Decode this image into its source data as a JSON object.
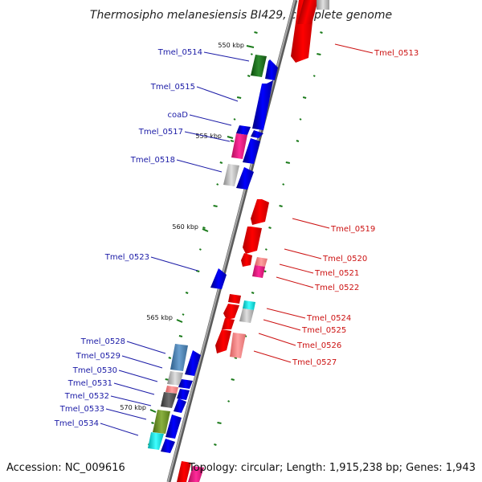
{
  "title": "Thermosipho melanesiensis BI429, complete genome",
  "footer": {
    "accession": "Accession: NC_009616",
    "topology": "Topology: circular; Length: 1,915,238 bp; Genes: 1,943"
  },
  "colors": {
    "forward_label": "#1a1aa6",
    "reverse_label": "#cc1111",
    "forward_cds": "#0000ff",
    "reverse_cds": "#ff0000",
    "backbone": "#8c8c8c",
    "gc_ticks": "#1a7a1a"
  },
  "ruler": {
    "ticks": [
      "550 kbp",
      "555 kbp",
      "560 kbp",
      "565 kbp",
      "570 kbp"
    ]
  },
  "forward_genes": [
    {
      "label": "Tmel_0514"
    },
    {
      "label": "Tmel_0515"
    },
    {
      "label": "coaD"
    },
    {
      "label": "Tmel_0517"
    },
    {
      "label": "Tmel_0518"
    },
    {
      "label": "Tmel_0523"
    },
    {
      "label": "Tmel_0528"
    },
    {
      "label": "Tmel_0529"
    },
    {
      "label": "Tmel_0530"
    },
    {
      "label": "Tmel_0531"
    },
    {
      "label": "Tmel_0532"
    },
    {
      "label": "Tmel_0533"
    },
    {
      "label": "Tmel_0534"
    }
  ],
  "reverse_genes": [
    {
      "label": "Tmel_0513"
    },
    {
      "label": "Tmel_0519"
    },
    {
      "label": "Tmel_0520"
    },
    {
      "label": "Tmel_0521"
    },
    {
      "label": "Tmel_0522"
    },
    {
      "label": "Tmel_0524"
    },
    {
      "label": "Tmel_0525"
    },
    {
      "label": "Tmel_0526"
    },
    {
      "label": "Tmel_0527"
    }
  ]
}
